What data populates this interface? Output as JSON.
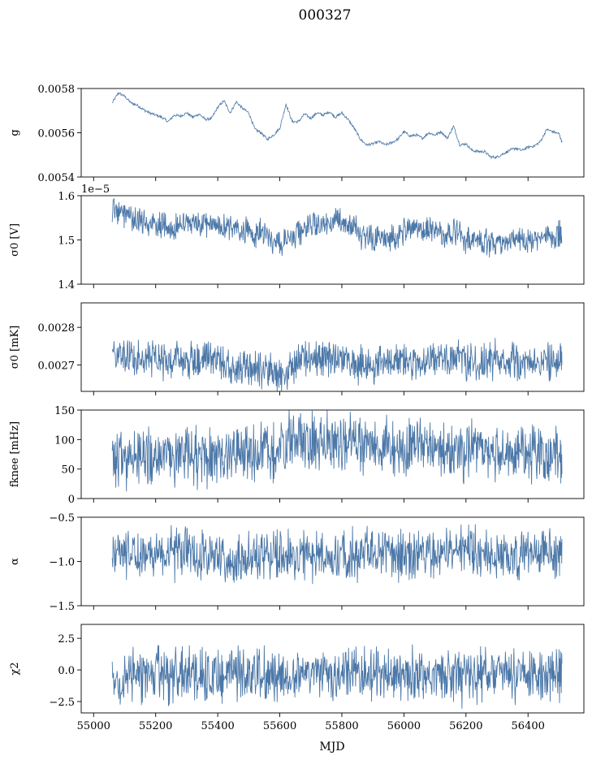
{
  "figure": {
    "title": "000327",
    "xlabel": "MJD",
    "series_color": "#4c78a8"
  },
  "chart_data": [
    {
      "type": "line",
      "ylabel": "g",
      "ylim": [
        0.0054,
        0.0058
      ],
      "yticks": [
        "0.0054",
        "0.0056",
        "0.0058"
      ],
      "ytick_values": [
        0.0054,
        0.0056,
        0.0058
      ],
      "xlim": [
        54960,
        56580
      ],
      "offset_text": "",
      "x": [
        55060,
        55080,
        55100,
        55120,
        55140,
        55160,
        55180,
        55200,
        55220,
        55240,
        55260,
        55280,
        55300,
        55320,
        55340,
        55360,
        55380,
        55400,
        55420,
        55440,
        55460,
        55480,
        55500,
        55520,
        55540,
        55560,
        55580,
        55600,
        55620,
        55640,
        55660,
        55680,
        55700,
        55720,
        55740,
        55760,
        55780,
        55800,
        55820,
        55840,
        55860,
        55880,
        55900,
        55920,
        55940,
        55960,
        55980,
        56000,
        56020,
        56040,
        56060,
        56080,
        56100,
        56120,
        56140,
        56160,
        56180,
        56200,
        56220,
        56240,
        56260,
        56280,
        56300,
        56320,
        56340,
        56360,
        56380,
        56400,
        56420,
        56440,
        56460,
        56480,
        56500,
        56510
      ],
      "y": [
        0.005735,
        0.00578,
        0.005765,
        0.005735,
        0.005725,
        0.005705,
        0.00569,
        0.00568,
        0.00567,
        0.00565,
        0.00568,
        0.005675,
        0.00569,
        0.00567,
        0.005685,
        0.00566,
        0.005665,
        0.005715,
        0.005745,
        0.00569,
        0.00574,
        0.00571,
        0.00569,
        0.005615,
        0.0056,
        0.00557,
        0.00559,
        0.00562,
        0.00573,
        0.00565,
        0.00565,
        0.005685,
        0.005665,
        0.00569,
        0.00568,
        0.005695,
        0.00567,
        0.00569,
        0.00566,
        0.00562,
        0.00557,
        0.005545,
        0.00555,
        0.00556,
        0.005545,
        0.005555,
        0.00557,
        0.005605,
        0.005585,
        0.00559,
        0.005575,
        0.0056,
        0.00559,
        0.005605,
        0.005575,
        0.00563,
        0.005545,
        0.00555,
        0.00552,
        0.005515,
        0.005515,
        0.00549,
        0.00549,
        0.005505,
        0.00552,
        0.00553,
        0.00552,
        0.005535,
        0.00554,
        0.00556,
        0.005615,
        0.005605,
        0.005595,
        0.005555
      ]
    },
    {
      "type": "line",
      "ylabel": "σ0 [V]",
      "ylim": [
        1.4,
        1.6
      ],
      "yticks": [
        "1.4",
        "1.5",
        "1.6"
      ],
      "ytick_values": [
        1.4,
        1.5,
        1.6
      ],
      "xlim": [
        54960,
        56580
      ],
      "offset_text": "1e−5",
      "x": [
        55060,
        55080,
        55100,
        55120,
        55140,
        55160,
        55180,
        55200,
        55220,
        55240,
        55260,
        55280,
        55300,
        55320,
        55340,
        55360,
        55380,
        55400,
        55420,
        55440,
        55460,
        55480,
        55500,
        55520,
        55540,
        55560,
        55580,
        55600,
        55620,
        55640,
        55660,
        55680,
        55700,
        55720,
        55740,
        55760,
        55780,
        55800,
        55820,
        55840,
        55860,
        55880,
        55900,
        55920,
        55940,
        55960,
        55980,
        56000,
        56020,
        56040,
        56060,
        56080,
        56100,
        56120,
        56140,
        56160,
        56180,
        56200,
        56220,
        56240,
        56260,
        56280,
        56300,
        56320,
        56340,
        56360,
        56380,
        56400,
        56420,
        56440,
        56460,
        56480,
        56500,
        56510
      ],
      "y": [
        1.572,
        1.568,
        1.56,
        1.551,
        1.545,
        1.542,
        1.538,
        1.536,
        1.532,
        1.528,
        1.53,
        1.534,
        1.537,
        1.537,
        1.535,
        1.538,
        1.536,
        1.534,
        1.526,
        1.526,
        1.522,
        1.524,
        1.517,
        1.512,
        1.52,
        1.512,
        1.5,
        1.496,
        1.494,
        1.498,
        1.516,
        1.528,
        1.537,
        1.54,
        1.542,
        1.538,
        1.54,
        1.542,
        1.537,
        1.53,
        1.51,
        1.503,
        1.505,
        1.51,
        1.505,
        1.508,
        1.504,
        1.515,
        1.524,
        1.52,
        1.522,
        1.52,
        1.516,
        1.518,
        1.51,
        1.515,
        1.51,
        1.5,
        1.502,
        1.505,
        1.498,
        1.492,
        1.49,
        1.492,
        1.5,
        1.502,
        1.502,
        1.498,
        1.495,
        1.502,
        1.51,
        1.513,
        1.515,
        1.505
      ]
    },
    {
      "type": "line",
      "ylabel": "σ0 [mK]",
      "ylim": [
        0.00263,
        0.002865
      ],
      "yticks": [
        "0.0027",
        "0.0028"
      ],
      "ytick_values": [
        0.0027,
        0.0028
      ],
      "xlim": [
        54960,
        56580
      ],
      "offset_text": "",
      "x": [
        55060,
        55080,
        55100,
        55120,
        55140,
        55160,
        55180,
        55200,
        55220,
        55240,
        55260,
        55280,
        55300,
        55320,
        55340,
        55360,
        55380,
        55400,
        55420,
        55440,
        55460,
        55480,
        55500,
        55520,
        55540,
        55560,
        55580,
        55600,
        55620,
        55640,
        55660,
        55680,
        55700,
        55720,
        55740,
        55760,
        55780,
        55800,
        55820,
        55840,
        55860,
        55880,
        55900,
        55920,
        55940,
        55960,
        55980,
        56000,
        56020,
        56040,
        56060,
        56080,
        56100,
        56120,
        56140,
        56160,
        56180,
        56200,
        56220,
        56240,
        56260,
        56280,
        56300,
        56320,
        56340,
        56360,
        56380,
        56400,
        56420,
        56440,
        56460,
        56480,
        56500,
        56510
      ],
      "y": [
        0.002718,
        0.00272,
        0.002724,
        0.002722,
        0.002714,
        0.002716,
        0.00272,
        0.002714,
        0.002706,
        0.00271,
        0.002716,
        0.002714,
        0.002712,
        0.00271,
        0.002714,
        0.002716,
        0.002722,
        0.002718,
        0.002696,
        0.002694,
        0.00269,
        0.002694,
        0.00269,
        0.002688,
        0.002692,
        0.002684,
        0.002682,
        0.002674,
        0.002672,
        0.002702,
        0.002714,
        0.002714,
        0.002718,
        0.002718,
        0.002714,
        0.00272,
        0.002712,
        0.002718,
        0.00271,
        0.002698,
        0.002708,
        0.002712,
        0.002702,
        0.002714,
        0.0027,
        0.002706,
        0.002714,
        0.002714,
        0.002716,
        0.002708,
        0.002716,
        0.00271,
        0.002712,
        0.002714,
        0.00271,
        0.002712,
        0.00272,
        0.00271,
        0.002708,
        0.002696,
        0.002712,
        0.002704,
        0.00272,
        0.002706,
        0.002714,
        0.002716,
        0.00271,
        0.00271,
        0.002706,
        0.002712,
        0.002716,
        0.002712,
        0.002712,
        0.00271
      ]
    },
    {
      "type": "line",
      "ylabel": "fknee [mHz]",
      "ylim": [
        0,
        150
      ],
      "yticks": [
        "0",
        "50",
        "100",
        "150"
      ],
      "ytick_values": [
        0,
        50,
        100,
        150
      ],
      "xlim": [
        54960,
        56580
      ],
      "offset_text": "",
      "x": [
        55060,
        55080,
        55100,
        55120,
        55140,
        55160,
        55180,
        55200,
        55220,
        55240,
        55260,
        55280,
        55300,
        55320,
        55340,
        55360,
        55380,
        55400,
        55420,
        55440,
        55460,
        55480,
        55500,
        55520,
        55540,
        55560,
        55580,
        55600,
        55620,
        55640,
        55660,
        55680,
        55700,
        55720,
        55740,
        55760,
        55780,
        55800,
        55820,
        55840,
        55860,
        55880,
        55900,
        55920,
        55940,
        55960,
        55980,
        56000,
        56020,
        56040,
        56060,
        56080,
        56100,
        56120,
        56140,
        56160,
        56180,
        56200,
        56220,
        56240,
        56260,
        56280,
        56300,
        56320,
        56340,
        56360,
        56380,
        56400,
        56420,
        56440,
        56460,
        56480,
        56500,
        56510
      ],
      "y": [
        70,
        72,
        71,
        70,
        69,
        71,
        70,
        72,
        71,
        70,
        69,
        71,
        72,
        70,
        71,
        73,
        72,
        74,
        76,
        78,
        79,
        80,
        79,
        80,
        81,
        82,
        84,
        86,
        96,
        98,
        96,
        92,
        90,
        92,
        91,
        93,
        94,
        92,
        90,
        89,
        91,
        90,
        88,
        86,
        88,
        87,
        88,
        87,
        88,
        86,
        85,
        84,
        82,
        80,
        79,
        78,
        80,
        80,
        82,
        81,
        80,
        78,
        79,
        80,
        82,
        79,
        77,
        76,
        75,
        74,
        73,
        74,
        72,
        71
      ]
    },
    {
      "type": "line",
      "ylabel": "α",
      "ylim": [
        -1.5,
        -0.5
      ],
      "yticks": [
        "−1.5",
        "−1.0",
        "−0.5"
      ],
      "ytick_values": [
        -1.5,
        -1.0,
        -0.5
      ],
      "xlim": [
        54960,
        56580
      ],
      "offset_text": "",
      "x": [
        55060,
        55080,
        55100,
        55120,
        55140,
        55160,
        55180,
        55200,
        55220,
        55240,
        55260,
        55280,
        55300,
        55320,
        55340,
        55360,
        55380,
        55400,
        55420,
        55440,
        55460,
        55480,
        55500,
        55520,
        55540,
        55560,
        55580,
        55600,
        55620,
        55640,
        55660,
        55680,
        55700,
        55720,
        55740,
        55760,
        55780,
        55800,
        55820,
        55840,
        55860,
        55880,
        55900,
        55920,
        55940,
        55960,
        55980,
        56000,
        56020,
        56040,
        56060,
        56080,
        56100,
        56120,
        56140,
        56160,
        56180,
        56200,
        56220,
        56240,
        56260,
        56280,
        56300,
        56320,
        56340,
        56360,
        56380,
        56400,
        56420,
        56440,
        56460,
        56480,
        56500,
        56510
      ],
      "y": [
        -0.92,
        -0.91,
        -0.9,
        -0.91,
        -0.92,
        -0.9,
        -0.91,
        -0.92,
        -0.91,
        -0.9,
        -0.91,
        -0.92,
        -0.9,
        -0.91,
        -0.92,
        -0.91,
        -0.93,
        -0.97,
        -1.0,
        -1.02,
        -0.98,
        -0.96,
        -0.95,
        -0.94,
        -0.96,
        -0.95,
        -0.94,
        -0.93,
        -0.92,
        -0.94,
        -0.93,
        -0.95,
        -0.94,
        -0.93,
        -0.92,
        -0.93,
        -0.94,
        -0.92,
        -0.93,
        -0.91,
        -0.93,
        -0.9,
        -0.92,
        -0.91,
        -0.93,
        -0.92,
        -0.91,
        -0.92,
        -0.93,
        -0.92,
        -0.91,
        -0.9,
        -0.92,
        -0.91,
        -0.89,
        -0.9,
        -0.88,
        -0.87,
        -0.9,
        -0.92,
        -0.91,
        -0.93,
        -0.92,
        -0.9,
        -0.91,
        -0.92,
        -0.91,
        -0.9,
        -0.91,
        -0.9,
        -0.89,
        -0.9,
        -0.91,
        -0.9
      ]
    },
    {
      "type": "line",
      "ylabel": "χ2",
      "ylim": [
        -3.4,
        3.6
      ],
      "yticks": [
        "−2.5",
        "0.0",
        "2.5"
      ],
      "ytick_values": [
        -2.5,
        0.0,
        2.5
      ],
      "xlim": [
        54960,
        56580
      ],
      "offset_text": "",
      "x": [
        55060,
        55080,
        55100,
        55120,
        55140,
        55160,
        55180,
        55200,
        55220,
        55240,
        55260,
        55280,
        55300,
        55320,
        55340,
        55360,
        55380,
        55400,
        55420,
        55440,
        55460,
        55480,
        55500,
        55520,
        55540,
        55560,
        55580,
        55600,
        55620,
        55640,
        55660,
        55680,
        55700,
        55720,
        55740,
        55760,
        55780,
        55800,
        55820,
        55840,
        55860,
        55880,
        55900,
        55920,
        55940,
        55960,
        55980,
        56000,
        56020,
        56040,
        56060,
        56080,
        56100,
        56120,
        56140,
        56160,
        56180,
        56200,
        56220,
        56240,
        56260,
        56280,
        56300,
        56320,
        56340,
        56360,
        56380,
        56400,
        56420,
        56440,
        56460,
        56480,
        56500,
        56510
      ],
      "y": [
        -0.5,
        -0.4,
        -0.45,
        -0.5,
        -0.42,
        -0.38,
        -0.46,
        -0.44,
        -0.4,
        -0.48,
        -0.5,
        -0.36,
        -0.42,
        -0.45,
        -0.48,
        -0.4,
        -0.38,
        -0.42,
        -0.46,
        -0.44,
        -0.4,
        -0.38,
        -0.42,
        -0.45,
        -0.5,
        -0.44,
        -0.4,
        -0.42,
        -0.45,
        -0.48,
        -0.4,
        -0.42,
        -0.44,
        -0.46,
        -0.4,
        -0.38,
        -0.42,
        -0.44,
        -0.46,
        -0.48,
        -0.5,
        -0.45,
        -0.42,
        -0.4,
        -0.44,
        -0.46,
        -0.48,
        -0.42,
        -0.4,
        -0.38,
        -0.44,
        -0.46,
        -0.42,
        -0.4,
        -0.44,
        -0.46,
        -0.48,
        -0.45,
        -0.42,
        -0.4,
        -0.44,
        -0.46,
        -0.42,
        -0.44,
        -0.46,
        -0.4,
        -0.42,
        -0.45,
        -0.48,
        -0.44,
        -0.42,
        -0.4,
        -0.44,
        -0.46
      ]
    }
  ],
  "xaxis": {
    "ticks": [
      "55000",
      "55200",
      "55400",
      "55600",
      "55800",
      "56000",
      "56200",
      "56400"
    ],
    "tick_values": [
      55000,
      55200,
      55400,
      55600,
      55800,
      56000,
      56200,
      56400
    ]
  }
}
